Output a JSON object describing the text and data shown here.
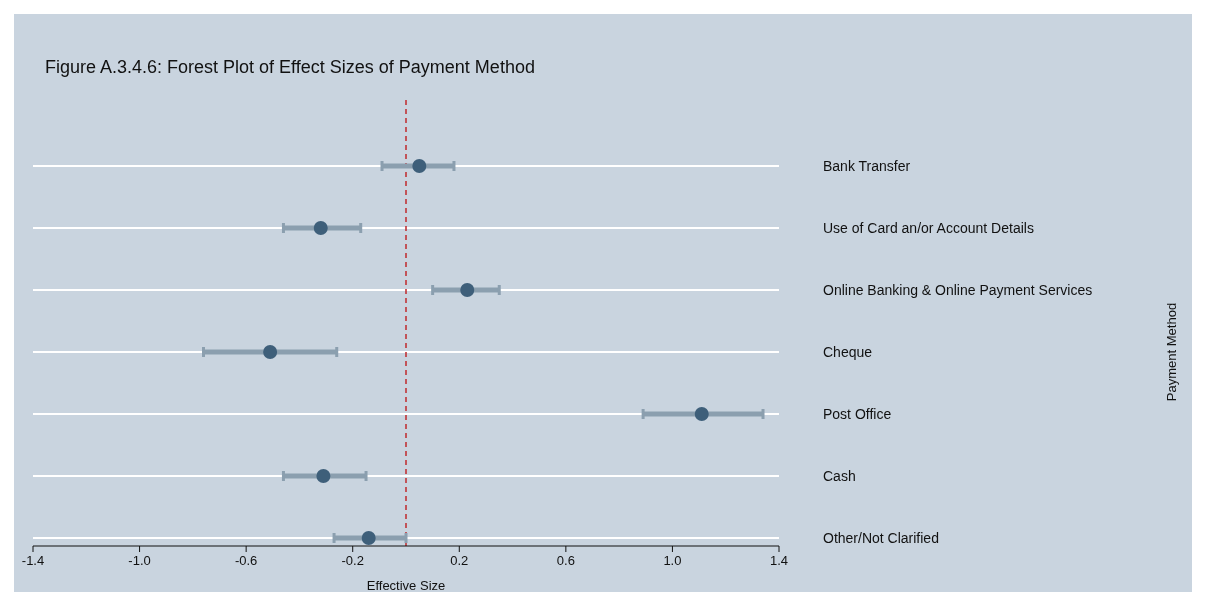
{
  "chart_data": {
    "type": "scatter",
    "orientation": "horizontal",
    "title": "Figure A.3.4.6: Forest Plot of Effect Sizes of Payment Method",
    "xlabel": "Effective Size",
    "annotations": [
      "Payment Method"
    ],
    "categories": [
      "Bank Transfer",
      "Use of Card an/or Account Details",
      "Online Banking & Online Payment Services",
      "Cheque",
      "Post Office",
      "Cash",
      "Other/Not Clarified"
    ],
    "series": [
      {
        "color": "#3e5f7a",
        "values": [
          0.05,
          -0.32,
          0.23,
          -0.51,
          1.11,
          -0.31,
          -0.14
        ],
        "errors": [
          [
            -0.09,
            0.18
          ],
          [
            -0.46,
            -0.17
          ],
          [
            0.1,
            0.35
          ],
          [
            -0.76,
            -0.26
          ],
          [
            0.89,
            1.34
          ],
          [
            -0.46,
            -0.15
          ],
          [
            -0.27,
            0.0
          ]
        ]
      }
    ],
    "xlim": [
      -1.4,
      1.4
    ],
    "xticks": [
      -1.4,
      {
        "value": -1,
        "label": "-1.0"
      },
      -0.6,
      -0.2,
      0.2,
      0.6,
      {
        "value": 1,
        "label": "1.0"
      },
      1.4
    ],
    "grid": "y",
    "marker": "circle",
    "ref_lines": [
      {
        "axis": "x",
        "value": 0,
        "color": "#c0282d",
        "line_style": "dashed"
      }
    ]
  }
}
